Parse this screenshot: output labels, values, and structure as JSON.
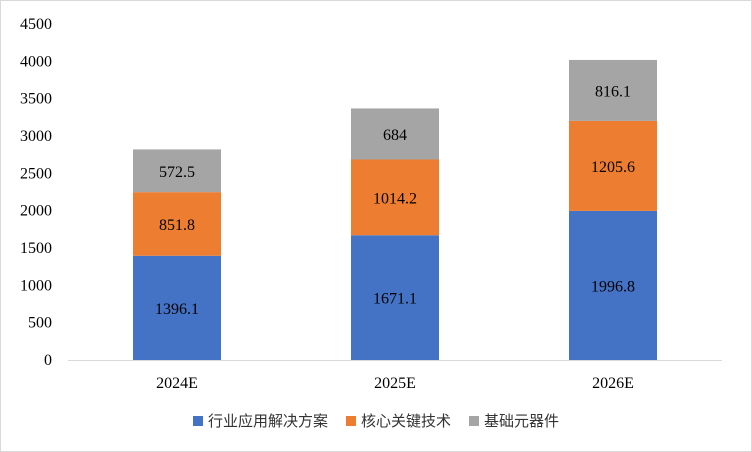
{
  "chart_data": {
    "type": "bar",
    "stacked": true,
    "title": "",
    "xlabel": "",
    "ylabel": "",
    "categories": [
      "2024E",
      "2025E",
      "2026E"
    ],
    "series": [
      {
        "name": "行业应用解决方案",
        "color": "#4472C4",
        "values": [
          1396.1,
          1671.1,
          1996.8
        ],
        "labels": [
          "1396.1",
          "1671.1",
          "1996.8"
        ]
      },
      {
        "name": "核心关键技术",
        "color": "#ED7D31",
        "values": [
          851.8,
          1014.2,
          1205.6
        ],
        "labels": [
          "851.8",
          "1014.2",
          "1205.6"
        ]
      },
      {
        "name": "基础元器件",
        "color": "#A5A5A5",
        "values": [
          572.5,
          684,
          816.1
        ],
        "labels": [
          "572.5",
          "684",
          "816.1"
        ]
      }
    ],
    "ylim": [
      0,
      4500
    ],
    "yticks": [
      0,
      500,
      1000,
      1500,
      2000,
      2500,
      3000,
      3500,
      4000,
      4500
    ],
    "grid": false,
    "legend_position": "bottom"
  }
}
